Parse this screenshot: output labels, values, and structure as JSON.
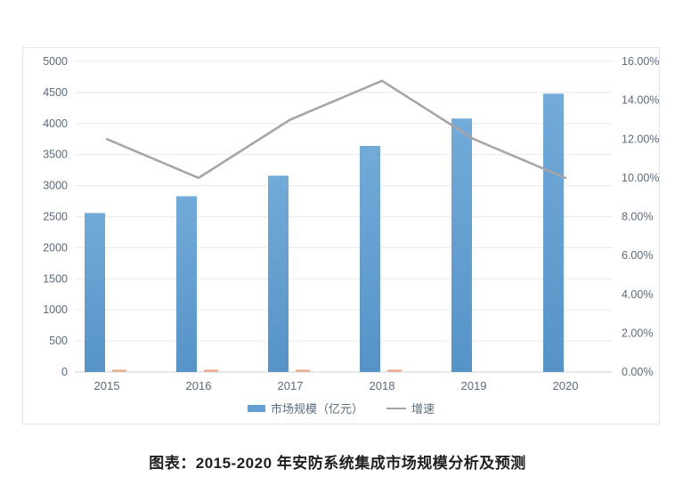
{
  "caption": "图表：2015-2020 年安防系统集成市场规模分析及预测",
  "colors": {
    "bar_blue": "#63a0d3",
    "line_gray": "#a6a6a6",
    "marker_orange": "#f0a17b",
    "axis_text": "#5a6b7e",
    "gridline": "#e9edf1",
    "zero_line": "#d3d9de",
    "panel_border": "#e4e7ea",
    "caption_text": "#1f1f1f"
  },
  "chart_data": {
    "type": "bar",
    "combo": "bar+line",
    "title": "图表：2015-2020 年安防系统集成市场规模分析及预测",
    "categories": [
      "2015",
      "2016",
      "2017",
      "2018",
      "2019",
      "2020"
    ],
    "series": [
      {
        "name": "市场规模（亿元）",
        "type": "bar",
        "axis": "left",
        "color": "#63a0d3",
        "values": [
          2560,
          2830,
          3160,
          3640,
          4080,
          4480
        ]
      },
      {
        "name": "增速",
        "type": "line",
        "axis": "right",
        "color": "#a6a6a6",
        "unit": "%",
        "values": [
          12.0,
          10.0,
          13.0,
          15.0,
          12.0,
          10.0
        ]
      },
      {
        "name": "zero-baseline-dash",
        "type": "bar",
        "axis": "left",
        "color": "#f0a17b",
        "values": [
          20,
          20,
          20,
          20,
          0,
          0
        ],
        "note": "tiny orange dashes at the zero line, 2015-2018 only"
      }
    ],
    "left_axis": {
      "min": 0,
      "max": 5000,
      "step": 500,
      "ticks": [
        "0",
        "500",
        "1000",
        "1500",
        "2000",
        "2500",
        "3000",
        "3500",
        "4000",
        "4500",
        "5000"
      ]
    },
    "right_axis": {
      "min": 0,
      "max": 16,
      "step": 2,
      "ticks": [
        "0.00%",
        "2.00%",
        "4.00%",
        "6.00%",
        "8.00%",
        "10.00%",
        "12.00%",
        "14.00%",
        "16.00%"
      ]
    },
    "legend": {
      "position": "bottom",
      "entries": [
        "市场规模（亿元）",
        "增速"
      ]
    },
    "grid": true
  }
}
